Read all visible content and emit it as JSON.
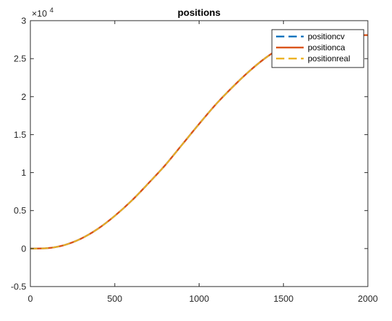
{
  "chart_data": {
    "type": "line",
    "title": "positions",
    "xlabel": "",
    "ylabel": "",
    "xlim": [
      0,
      2000
    ],
    "ylim": [
      -5000,
      30000
    ],
    "x_ticks": [
      0,
      500,
      1000,
      1500,
      2000
    ],
    "x_tick_labels": [
      "0",
      "500",
      "1000",
      "1500",
      "2000"
    ],
    "y_ticks": [
      -5000,
      0,
      5000,
      10000,
      15000,
      20000,
      25000,
      30000
    ],
    "y_tick_labels": [
      "-0.5",
      "0",
      "0.5",
      "1",
      "1.5",
      "2",
      "2.5",
      "3"
    ],
    "y_exponent": {
      "base": "×10",
      "power": "4"
    },
    "grid": false,
    "legend_placement": "top-right",
    "series": [
      {
        "name": "positioncv",
        "color": "#0072BD",
        "style": "dashed",
        "x": [
          0,
          100,
          200,
          300,
          400,
          500,
          600,
          700,
          800,
          900,
          1000,
          1100,
          1200,
          1300,
          1400,
          1500,
          1600,
          1700,
          1800,
          1900,
          2000
        ],
        "y": [
          0,
          50,
          450,
          1300,
          2600,
          4300,
          6300,
          8600,
          11000,
          13700,
          16400,
          19000,
          21300,
          23400,
          25200,
          26600,
          27500,
          28000,
          28100,
          28100,
          28100
        ]
      },
      {
        "name": "positionca",
        "color": "#D95319",
        "style": "solid",
        "x": [
          0,
          100,
          200,
          300,
          400,
          500,
          600,
          700,
          800,
          900,
          1000,
          1100,
          1200,
          1300,
          1400,
          1500,
          1600,
          1700,
          1800,
          1900,
          2000
        ],
        "y": [
          0,
          50,
          450,
          1300,
          2600,
          4300,
          6300,
          8600,
          11000,
          13700,
          16400,
          19000,
          21300,
          23400,
          25200,
          26600,
          27500,
          28000,
          28100,
          28100,
          28100
        ]
      },
      {
        "name": "positionreal",
        "color": "#EDB120",
        "style": "dashed",
        "x": [
          0,
          100,
          200,
          300,
          400,
          500,
          600,
          700,
          800,
          900,
          1000,
          1100,
          1200,
          1300,
          1400,
          1500,
          1600,
          1700,
          1800,
          1900,
          2000
        ],
        "y": [
          0,
          50,
          450,
          1300,
          2600,
          4300,
          6300,
          8600,
          11000,
          13700,
          16400,
          19000,
          21300,
          23400,
          25200,
          26600,
          27500,
          28000,
          28100,
          28100,
          28100
        ]
      }
    ]
  }
}
